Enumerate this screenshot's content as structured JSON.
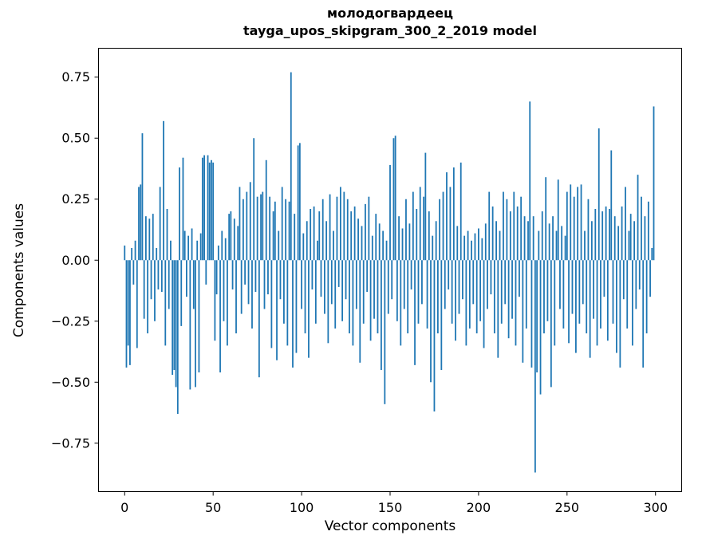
{
  "figure": {
    "title_line1": "молодогвардеец",
    "title_line2": "tayga_upos_skipgram_300_2_2019 model",
    "xlabel": "Vector components",
    "ylabel": "Components values"
  },
  "chart_data": {
    "type": "bar",
    "title": "молодогвардеец\ntayga_upos_skipgram_300_2_2019 model",
    "xlabel": "Vector components",
    "ylabel": "Components values",
    "legend": "none",
    "grid": false,
    "bar_color": "#1f77b4",
    "n_components": 300,
    "xlim": [
      -15,
      315
    ],
    "ylim": [
      -0.95,
      0.87
    ],
    "x_ticks": [
      0,
      50,
      100,
      150,
      200,
      250,
      300
    ],
    "y_ticks": [
      0.75,
      0.5,
      0.25,
      0,
      -0.25,
      -0.5,
      -0.75
    ],
    "y_tick_labels": [
      "0.75",
      "0.50",
      "0.25",
      "0.00",
      "−0.25",
      "−0.50",
      "−0.75"
    ],
    "values": [
      0.06,
      -0.44,
      -0.35,
      -0.43,
      0.05,
      -0.1,
      0.08,
      -0.36,
      0.3,
      0.31,
      0.52,
      -0.24,
      0.18,
      -0.3,
      0.17,
      -0.16,
      0.19,
      -0.25,
      0.05,
      -0.12,
      0.3,
      -0.13,
      0.57,
      -0.35,
      0.21,
      -0.2,
      0.08,
      -0.47,
      -0.45,
      -0.52,
      -0.63,
      0.38,
      -0.27,
      0.42,
      0.12,
      -0.15,
      0.1,
      -0.53,
      0.13,
      -0.2,
      -0.52,
      0.08,
      -0.46,
      0.11,
      0.42,
      0.43,
      -0.1,
      0.43,
      0.4,
      0.41,
      0.4,
      -0.33,
      -0.14,
      0.06,
      -0.46,
      0.12,
      -0.25,
      0.09,
      -0.35,
      0.19,
      0.2,
      -0.12,
      0.17,
      -0.3,
      0.14,
      0.3,
      -0.22,
      0.25,
      -0.1,
      0.28,
      -0.18,
      0.32,
      -0.28,
      0.5,
      -0.13,
      0.26,
      -0.48,
      0.27,
      0.28,
      -0.2,
      0.41,
      -0.14,
      0.26,
      -0.36,
      0.2,
      0.24,
      -0.41,
      0.12,
      -0.16,
      0.3,
      -0.26,
      0.25,
      -0.35,
      0.24,
      0.77,
      -0.44,
      0.19,
      -0.38,
      0.47,
      0.48,
      -0.2,
      0.11,
      -0.3,
      0.16,
      -0.4,
      0.21,
      -0.12,
      0.22,
      -0.26,
      0.08,
      0.2,
      -0.15,
      0.25,
      -0.22,
      0.16,
      -0.34,
      0.27,
      -0.18,
      0.12,
      -0.28,
      0.26,
      -0.11,
      0.3,
      -0.25,
      0.28,
      -0.16,
      0.25,
      -0.3,
      0.2,
      -0.35,
      0.22,
      -0.2,
      0.17,
      -0.42,
      0.14,
      -0.26,
      0.23,
      -0.13,
      0.26,
      -0.33,
      0.1,
      -0.24,
      0.19,
      -0.3,
      0.15,
      -0.45,
      0.12,
      -0.59,
      0.08,
      -0.22,
      0.39,
      -0.16,
      0.5,
      0.51,
      -0.25,
      0.18,
      -0.35,
      0.13,
      -0.2,
      0.25,
      -0.3,
      0.15,
      -0.12,
      0.28,
      -0.43,
      0.21,
      -0.26,
      0.3,
      -0.18,
      0.26,
      0.44,
      -0.28,
      0.2,
      -0.5,
      0.1,
      -0.62,
      0.16,
      -0.3,
      0.25,
      -0.45,
      0.28,
      -0.2,
      0.36,
      -0.12,
      0.3,
      -0.26,
      0.38,
      -0.33,
      0.14,
      -0.22,
      0.4,
      -0.16,
      0.1,
      -0.35,
      0.12,
      -0.28,
      0.08,
      -0.18,
      0.11,
      -0.3,
      0.13,
      -0.25,
      0.09,
      -0.36,
      0.15,
      -0.2,
      0.28,
      -0.14,
      0.22,
      -0.3,
      0.16,
      -0.4,
      0.12,
      -0.26,
      0.28,
      -0.18,
      0.25,
      -0.32,
      0.2,
      -0.24,
      0.28,
      -0.35,
      0.22,
      -0.15,
      0.26,
      -0.42,
      0.18,
      -0.28,
      0.16,
      0.65,
      -0.44,
      0.18,
      -0.87,
      -0.46,
      0.12,
      -0.55,
      0.2,
      -0.3,
      0.34,
      -0.25,
      0.15,
      -0.52,
      0.18,
      -0.35,
      0.12,
      0.33,
      -0.2,
      0.14,
      -0.28,
      0.1,
      0.28,
      -0.34,
      0.31,
      -0.22,
      0.26,
      -0.38,
      0.3,
      -0.26,
      0.31,
      -0.18,
      0.12,
      -0.3,
      0.25,
      -0.4,
      0.16,
      -0.24,
      0.21,
      -0.35,
      0.54,
      -0.28,
      0.2,
      -0.15,
      0.22,
      -0.33,
      0.21,
      0.45,
      -0.26,
      0.18,
      -0.38,
      0.14,
      -0.44,
      0.22,
      -0.16,
      0.3,
      -0.28,
      0.12,
      0.19,
      -0.35,
      0.16,
      -0.2,
      0.35,
      -0.12,
      0.26,
      -0.44,
      0.18,
      -0.3,
      0.24,
      -0.15,
      0.05,
      0.63
    ]
  }
}
